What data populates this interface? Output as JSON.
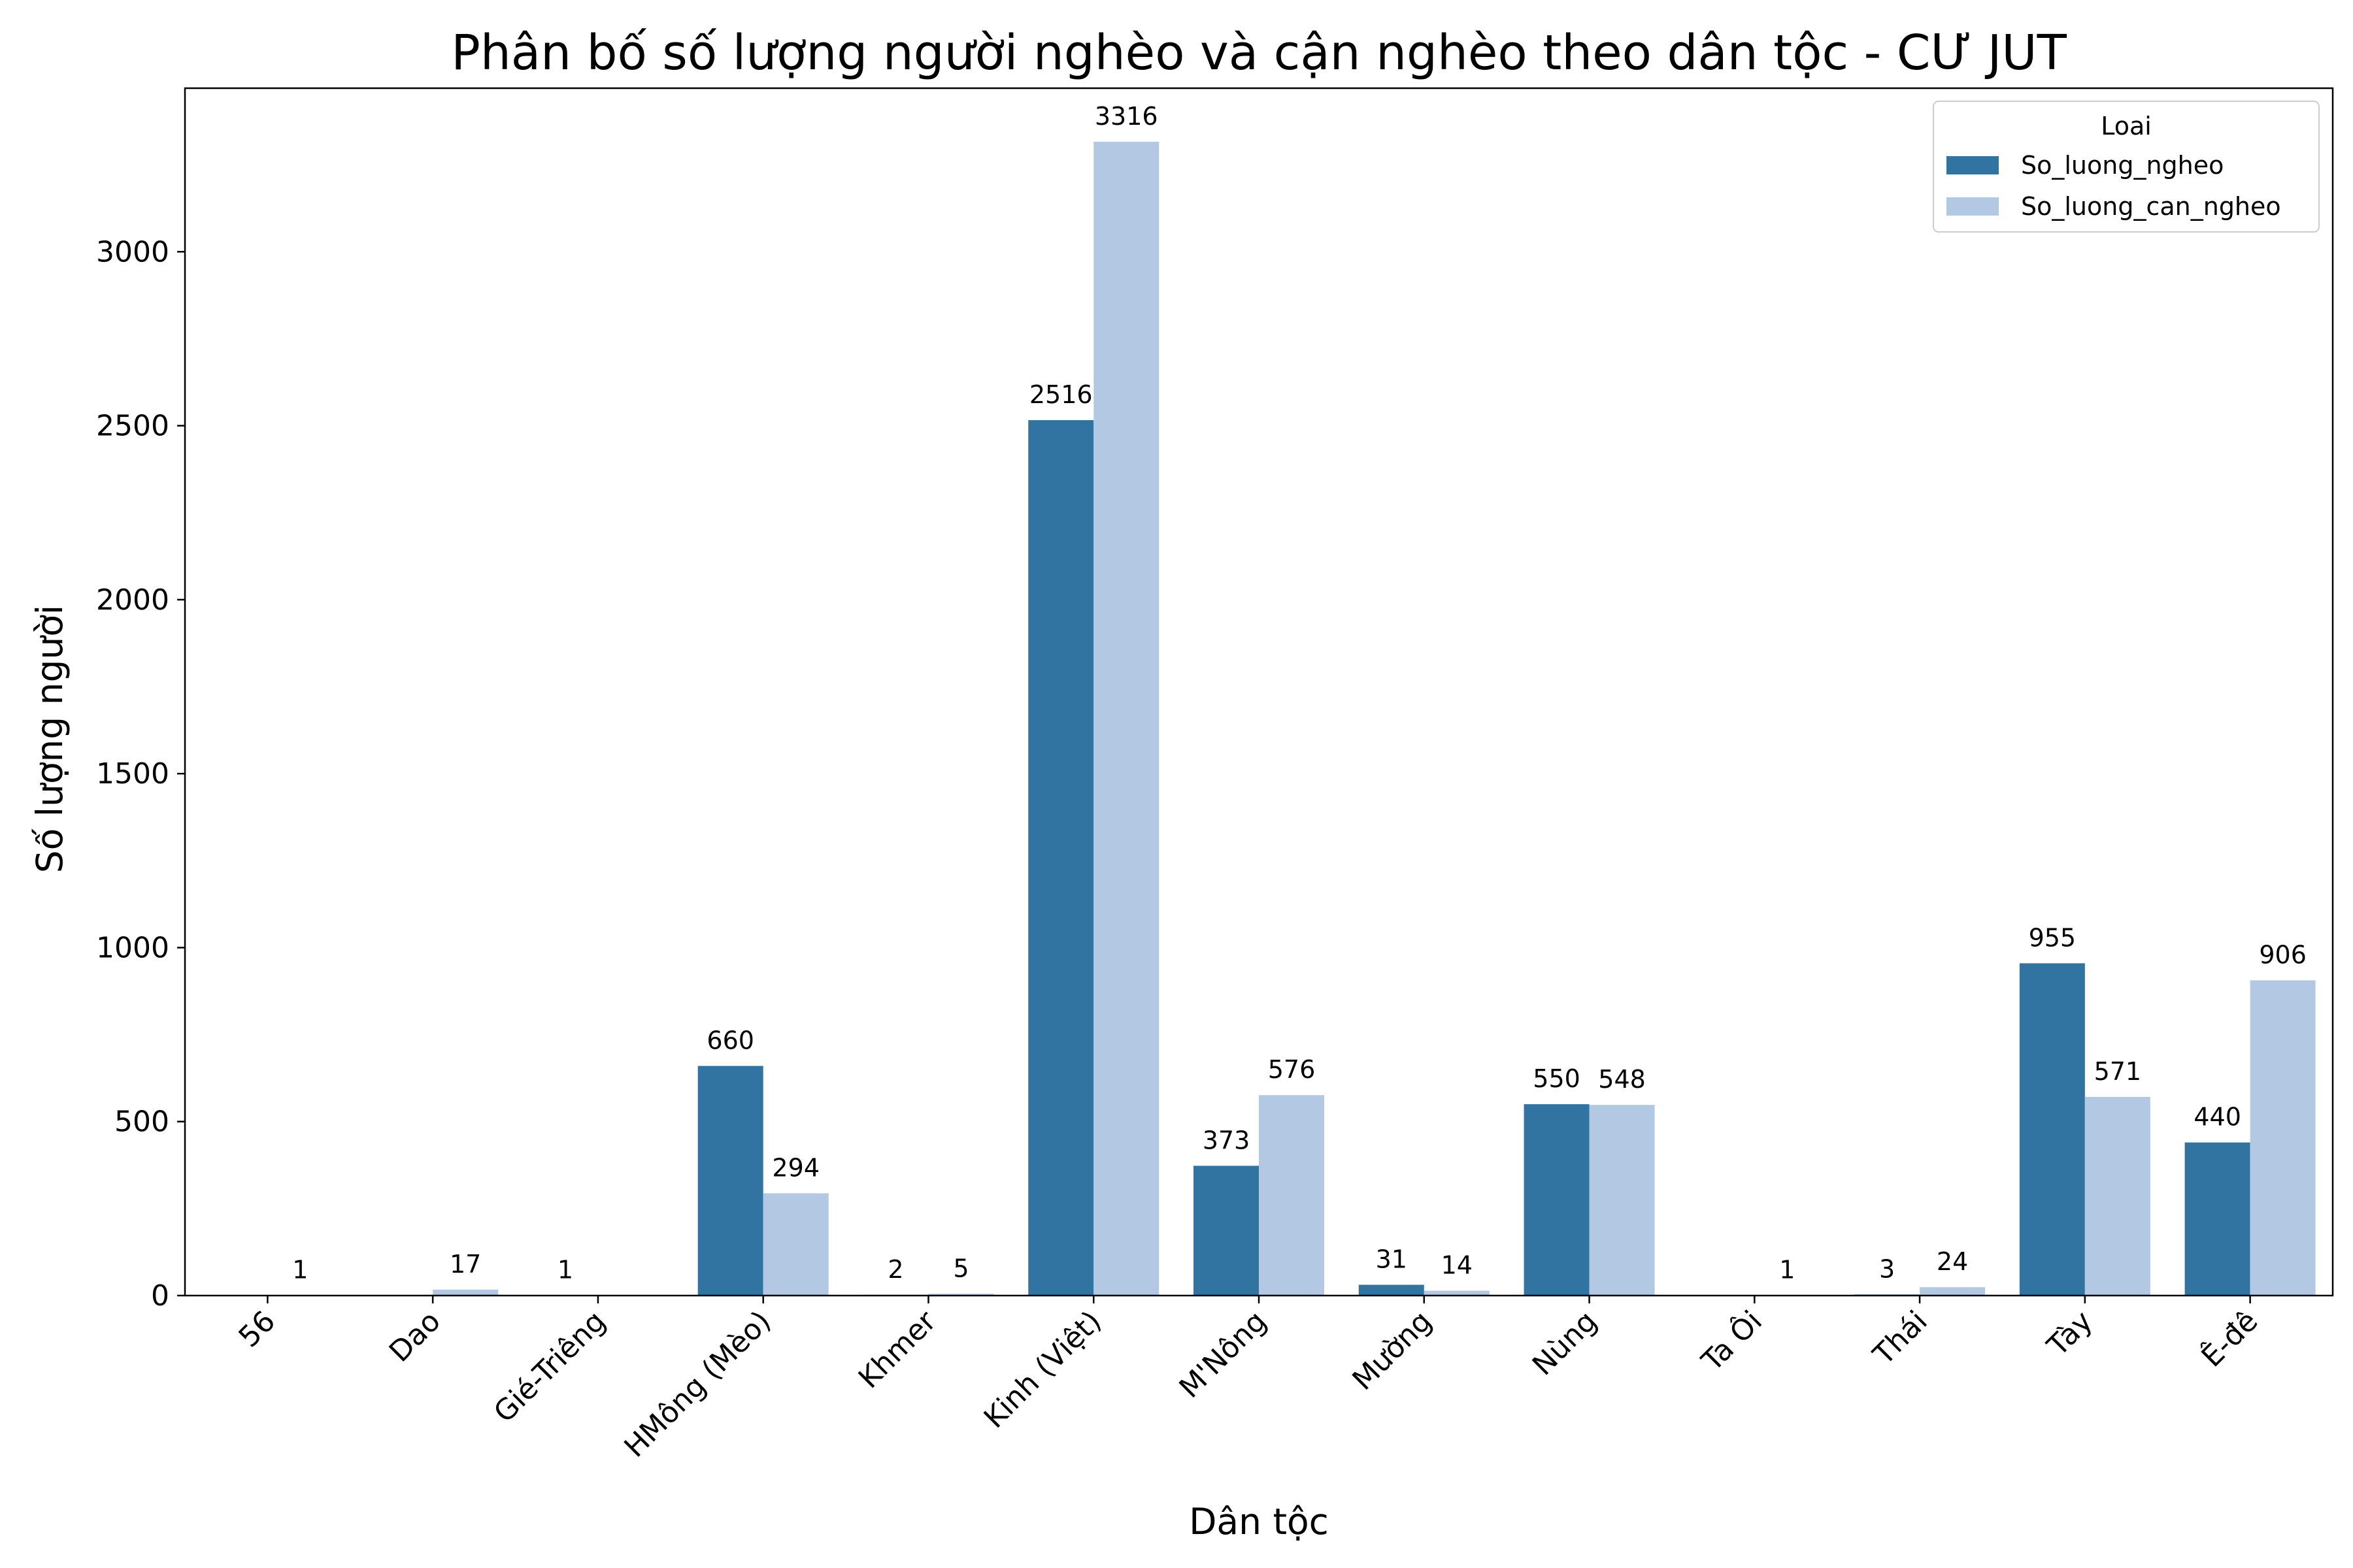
{
  "chart_data": {
    "type": "bar",
    "title": "Phân bố số lượng người nghèo và cận nghèo theo dân tộc - CƯ JUT",
    "xlabel": "Dân tộc",
    "ylabel": "Số lượng người",
    "ylim": [
      0,
      3470
    ],
    "yticks": [
      0,
      500,
      1000,
      1500,
      2000,
      2500,
      3000
    ],
    "grid": false,
    "legend": {
      "title": "Loai",
      "position": "top-right"
    },
    "categories": [
      "56",
      "Dao",
      "Gié-Triêng",
      "HMông (Mèo)",
      "Khmer",
      "Kinh (Việt)",
      "M'Nông",
      "Mường",
      "Nùng",
      "Ta Ôi",
      "Thái",
      "Tày",
      "Ê-đê"
    ],
    "series": [
      {
        "name": "So_luong_ngheo",
        "color": "#3274a1",
        "values": [
          null,
          null,
          1,
          660,
          2,
          2516,
          373,
          31,
          550,
          null,
          3,
          955,
          440
        ]
      },
      {
        "name": "So_luong_can_ngheo",
        "color": "#b3c8e3",
        "values": [
          1,
          17,
          null,
          294,
          5,
          3316,
          576,
          14,
          548,
          1,
          24,
          571,
          906
        ]
      }
    ]
  }
}
